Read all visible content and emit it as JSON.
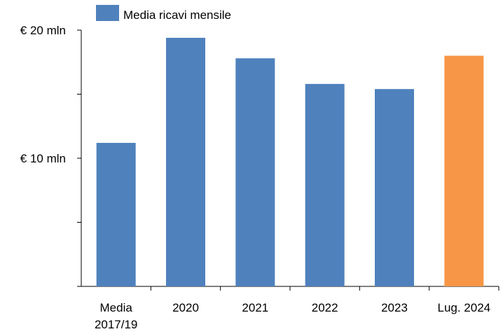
{
  "chart_data": {
    "type": "bar",
    "title": "",
    "xlabel": "",
    "ylabel": "",
    "categories": [
      "Media 2017/19",
      "2020",
      "2021",
      "2022",
      "2023",
      "Lug. 2024"
    ],
    "category_lines": [
      [
        "Media",
        "2017/19"
      ],
      [
        "2020"
      ],
      [
        "2021"
      ],
      [
        "2022"
      ],
      [
        "2023"
      ],
      [
        "Lug. 2024"
      ]
    ],
    "series": [
      {
        "name": "Media ricavi mensile",
        "values": [
          11.2,
          19.4,
          17.8,
          15.8,
          15.4,
          18.0
        ],
        "colors": [
          "#4f81bd",
          "#4f81bd",
          "#4f81bd",
          "#4f81bd",
          "#4f81bd",
          "#f79646"
        ]
      }
    ],
    "ylim": [
      0,
      20
    ],
    "yticks": [
      0,
      5,
      10,
      15,
      20
    ],
    "ytick_labels": [
      "",
      "",
      "€ 10 mln",
      "",
      "€ 20 mln"
    ],
    "grid": false,
    "legend": {
      "position": "top-left",
      "color": "#4f81bd",
      "label": "Media ricavi mensile"
    },
    "colors": {
      "primary": "#4f81bd",
      "highlight": "#f79646",
      "axis": "#000000"
    }
  }
}
